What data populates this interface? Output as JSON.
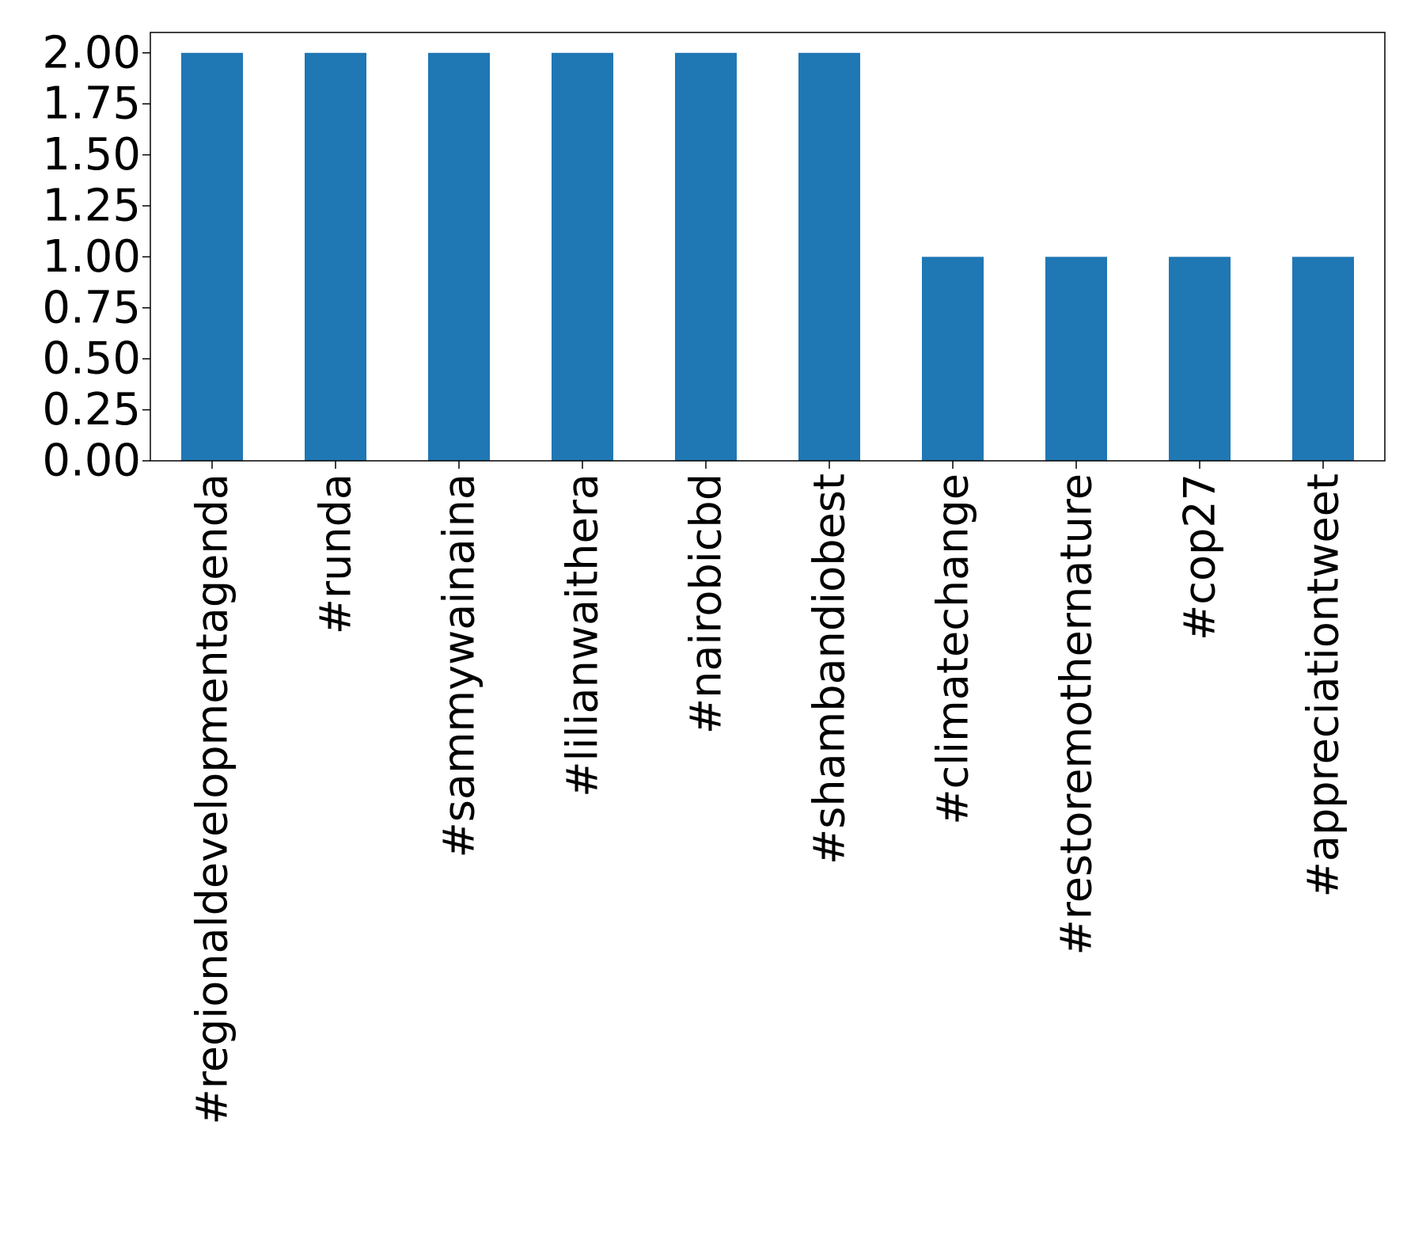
{
  "chart_data": {
    "type": "bar",
    "title": "",
    "xlabel": "",
    "ylabel": "",
    "categories": [
      "#regionaldevelopmentagenda",
      "#runda",
      "#sammywainaina",
      "#lilianwaithera",
      "#nairobicbd",
      "#shambandiobest",
      "#climatechange",
      "#restoremothernature",
      "#cop27",
      "#appreciationtweet"
    ],
    "values": [
      2,
      2,
      2,
      2,
      2,
      2,
      1,
      1,
      1,
      1
    ],
    "ylim": [
      0,
      2.1
    ],
    "yticks": [
      "0.00",
      "0.25",
      "0.50",
      "0.75",
      "1.00",
      "1.25",
      "1.50",
      "1.75",
      "2.00"
    ],
    "xtick_rotation": "vertical",
    "grid": false,
    "legend": "none",
    "colors": {
      "bar": "#1f77b4",
      "axis": "#000000",
      "background": "#ffffff"
    }
  }
}
